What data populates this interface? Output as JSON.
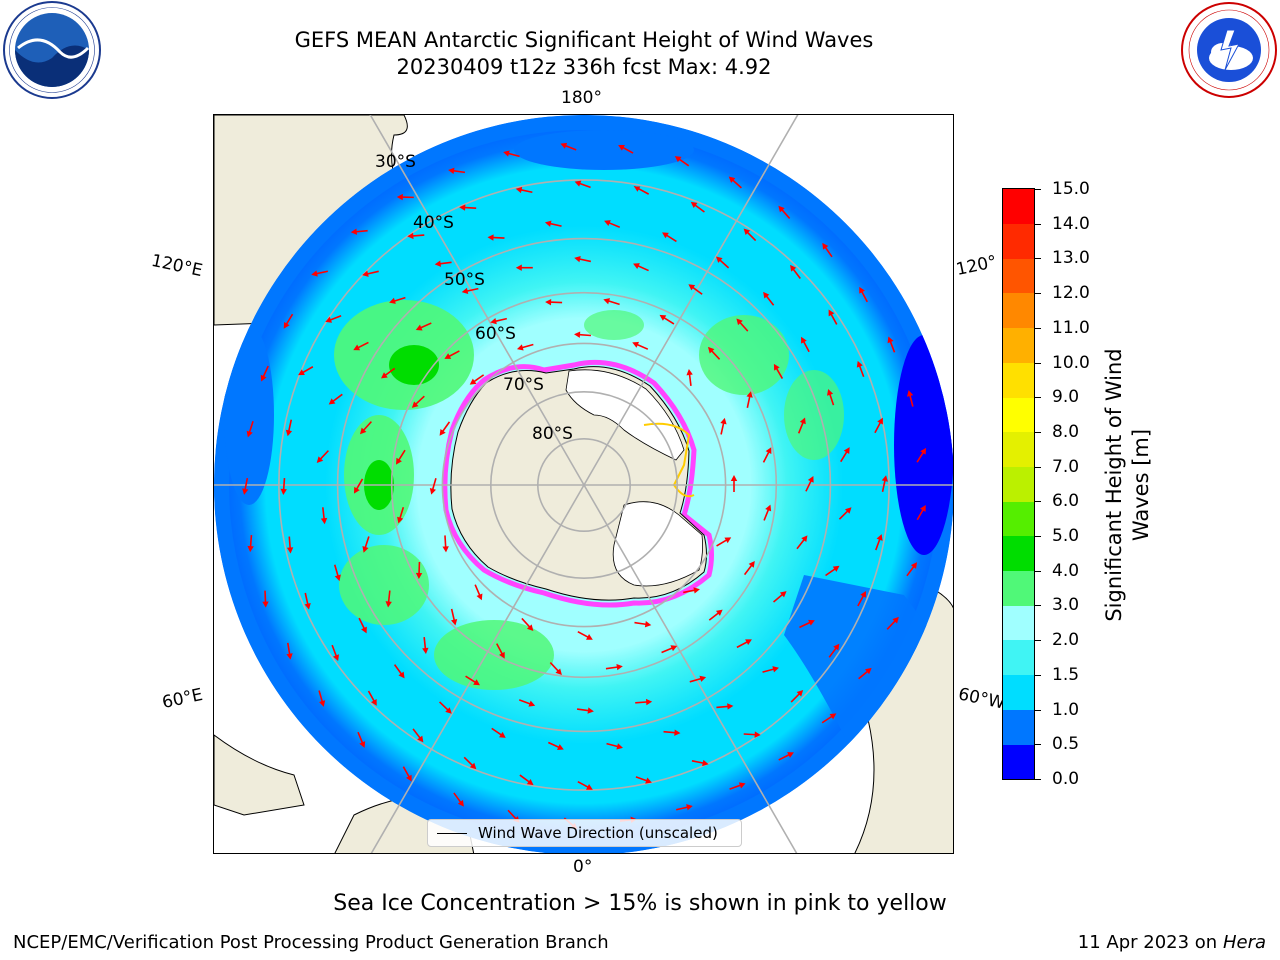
{
  "header": {
    "title_line1": "GEFS MEAN Antarctic Significant Height of Wind Waves",
    "title_line2": "20230409 t12z 336h fcst   Max: 4.92"
  },
  "logos": {
    "left": "noaa-logo",
    "right": "nws-logo"
  },
  "chart_data": {
    "type": "heatmap",
    "projection": "south-polar-stereographic",
    "title": "GEFS MEAN Antarctic Significant Height of Wind Waves",
    "subtitle": "20230409 t12z 336h fcst   Max: 4.92",
    "variable": "Significant Height of Wind Waves",
    "max_value": 4.92,
    "longitude_labels": [
      "180°",
      "120°E",
      "120°",
      "60°E",
      "60°W",
      "0°"
    ],
    "latitude_labels": [
      "30°S",
      "40°S",
      "50°S",
      "60°S",
      "70°S",
      "80°S"
    ],
    "latitude_circles": [
      30,
      40,
      50,
      60,
      70,
      80
    ],
    "legend": [
      {
        "label": "Wind Wave Direction (unscaled)",
        "marker": "line",
        "color": "#000000",
        "placement": "lower-center"
      }
    ],
    "arrow_color": "#ff0000",
    "colorbar": {
      "label": "Significant Height of Wind Waves [m]",
      "label_line1": "Significant Height of Wind",
      "label_line2": "Waves [m]",
      "ticks": [
        "0.0",
        "0.5",
        "1.0",
        "1.5",
        "2.0",
        "3.0",
        "4.0",
        "5.0",
        "6.0",
        "7.0",
        "8.0",
        "9.0",
        "10.0",
        "11.0",
        "12.0",
        "13.0",
        "14.0",
        "15.0"
      ],
      "boundaries": [
        0,
        0.5,
        1,
        1.5,
        2,
        3,
        4,
        5,
        6,
        7,
        8,
        9,
        10,
        11,
        12,
        13,
        14,
        15
      ],
      "colors": [
        "#0000ff",
        "#0077ff",
        "#00ddff",
        "#40f4f4",
        "#a0ffff",
        "#50f878",
        "#00dd00",
        "#55ee00",
        "#bbf000",
        "#e4f000",
        "#ffff00",
        "#ffe000",
        "#ffb000",
        "#ff8800",
        "#ff5500",
        "#ff2a00",
        "#ff0000"
      ]
    },
    "sea_ice_note": "Sea Ice Concentration > 15% is shown in pink to yellow"
  },
  "footer": {
    "note": "Sea Ice Concentration > 15% is shown in pink to yellow",
    "credit_left": "NCEP/EMC/Verification Post Processing Product Generation Branch",
    "credit_date": "11 Apr 2023 on",
    "credit_machine": "Hera"
  }
}
